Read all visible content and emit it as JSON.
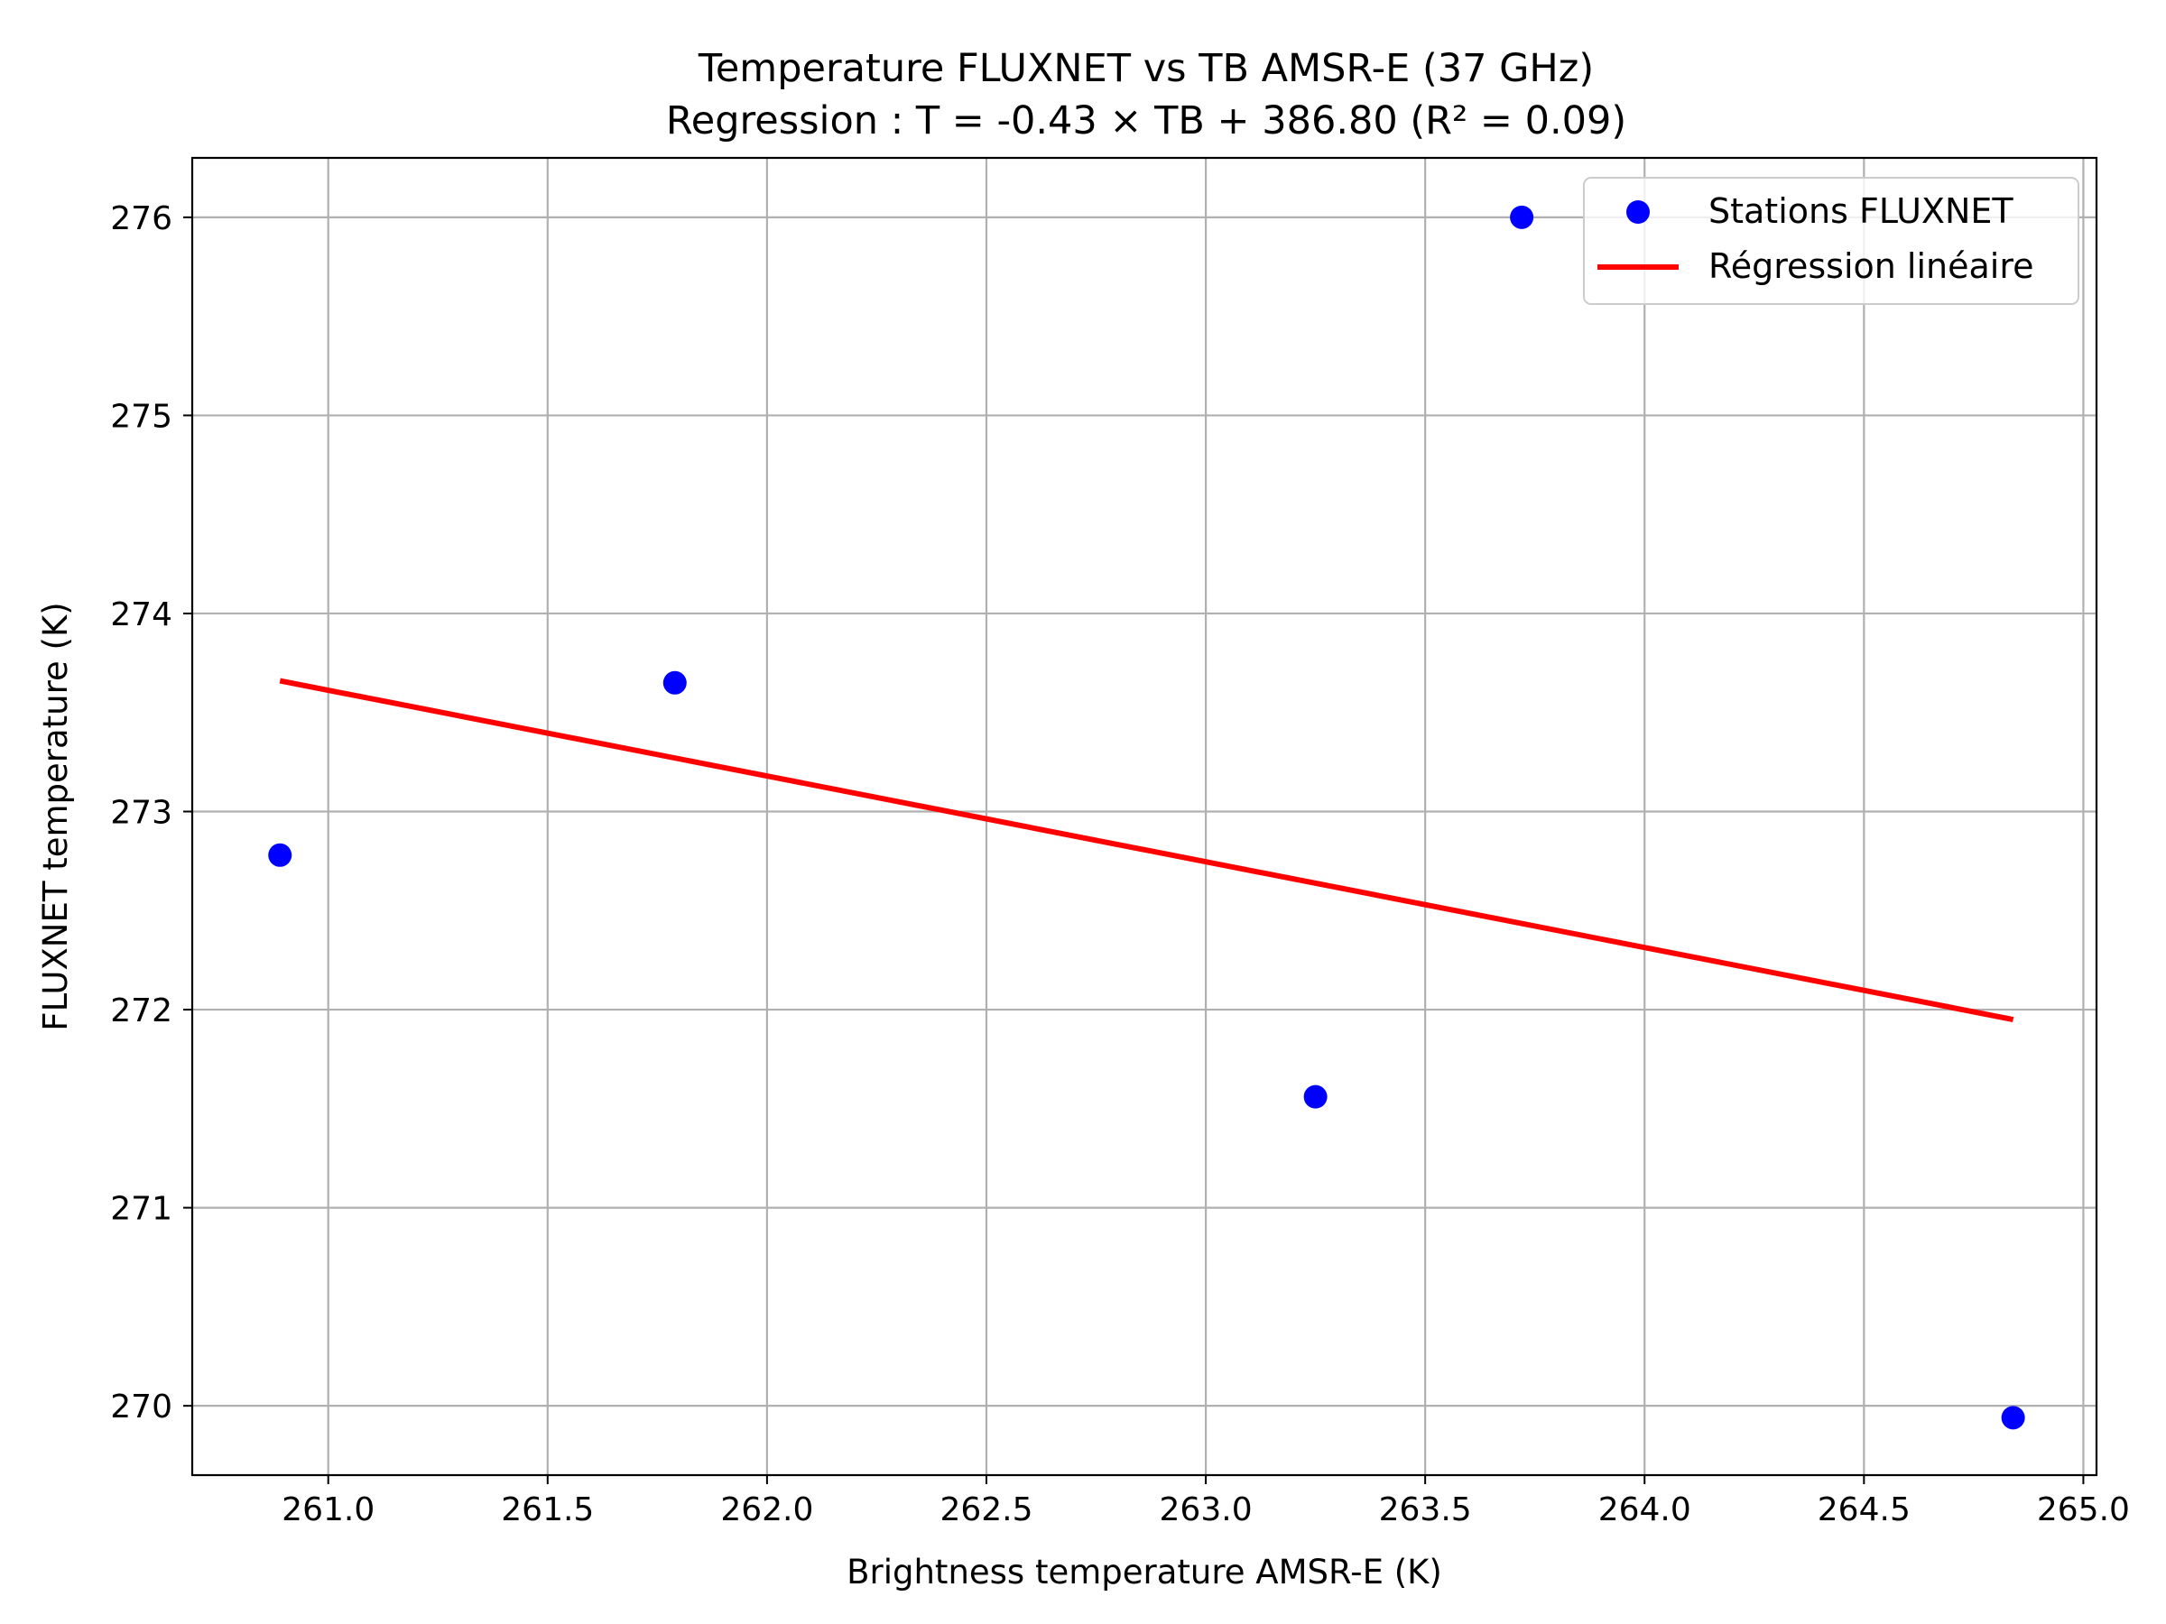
{
  "chart_data": {
    "type": "scatter",
    "title": "Temperature FLUXNET vs TB AMSR-E (37 GHz)",
    "subtitle": "Regression : T = -0.43 × TB + 386.80 (R² = 0.09)",
    "xlabel": "Brightness temperature AMSR-E (K)",
    "ylabel": "FLUXNET temperature (K)",
    "xlim": [
      260.69,
      265.03
    ],
    "ylim": [
      269.65,
      276.3
    ],
    "xticks": [
      261.0,
      261.5,
      262.0,
      262.5,
      263.0,
      263.5,
      264.0,
      264.5,
      265.0
    ],
    "xtick_labels": [
      "261.0",
      "261.5",
      "262.0",
      "262.5",
      "263.0",
      "263.5",
      "264.0",
      "264.5",
      "265.0"
    ],
    "yticks": [
      270,
      271,
      272,
      273,
      274,
      275,
      276
    ],
    "ytick_labels": [
      "270",
      "271",
      "272",
      "273",
      "274",
      "275",
      "276"
    ],
    "grid": true,
    "legend_position": "top-right",
    "series": [
      {
        "name": "Stations FLUXNET",
        "kind": "scatter",
        "color": "#0000ff",
        "x": [
          260.89,
          261.79,
          263.25,
          263.72,
          264.84
        ],
        "y": [
          272.78,
          273.65,
          271.56,
          276.0,
          269.94
        ]
      },
      {
        "name": "Régression linéaire",
        "kind": "line",
        "color": "#ff0000",
        "x": [
          260.89,
          264.84
        ],
        "y": [
          273.66,
          271.95
        ]
      }
    ]
  }
}
